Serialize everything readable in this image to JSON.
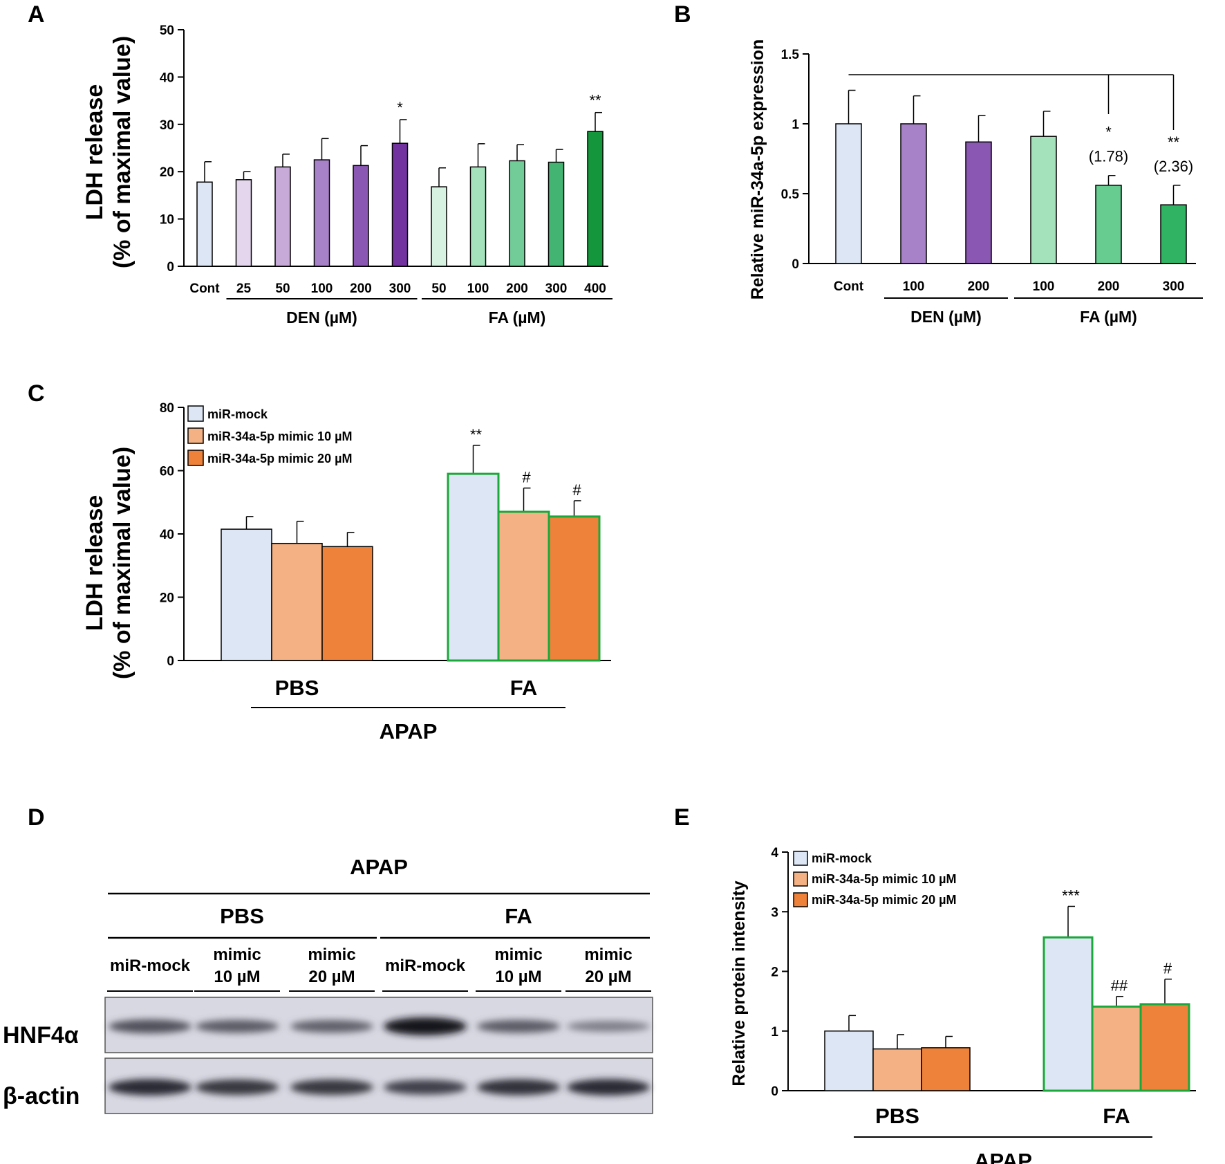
{
  "panel_letters": [
    "A",
    "B",
    "C",
    "D",
    "E"
  ],
  "colors": {
    "cont": "#dce6f4",
    "den": [
      "#e4d6ec",
      "#c8aad8",
      "#a882c8",
      "#8a58b2",
      "#7232a0"
    ],
    "fa": [
      "#d8f2e2",
      "#a4e2bc",
      "#72cc98",
      "#44b472",
      "#14963c"
    ],
    "fa_b": [
      "#a4e2bc",
      "#66cc90",
      "#30b464"
    ],
    "den_b": [
      "#a882c8",
      "#8a58b2"
    ],
    "mock": "#dce6f4",
    "mimic10": "#f4b284",
    "mimic20": "#ee823a",
    "outline_highlight": "#1aa83a",
    "outline_default": "#000000"
  },
  "chart_data": [
    {
      "panel": "A",
      "type": "bar",
      "ylabel": "LDH release",
      "ylabel2": "(% of maximal value)",
      "ylim": [
        0,
        50
      ],
      "yticks": [
        0,
        10,
        20,
        30,
        40,
        50
      ],
      "categories": [
        "Cont",
        "25",
        "50",
        "100",
        "200",
        "300",
        "50",
        "100",
        "200",
        "300",
        "400"
      ],
      "values": [
        17.8,
        18.3,
        21.0,
        22.5,
        21.3,
        26.0,
        16.8,
        21.0,
        22.3,
        22.0,
        28.5
      ],
      "errors": [
        4.3,
        1.7,
        2.7,
        4.5,
        4.2,
        5.0,
        4.0,
        4.9,
        3.4,
        2.7,
        4.0
      ],
      "annotations": [
        "",
        "",
        "",
        "",
        "",
        "*",
        "",
        "",
        "",
        "",
        "**"
      ],
      "groups": [
        {
          "label": "DEN (µM)",
          "from": 1,
          "to": 5
        },
        {
          "label": "FA (µM)",
          "from": 6,
          "to": 10
        }
      ]
    },
    {
      "panel": "B",
      "type": "bar",
      "ylabel": "Relative miR-34a-5p expression",
      "ylim": [
        0,
        1.5
      ],
      "yticks": [
        "0",
        "0.5",
        "1",
        "1.5"
      ],
      "categories": [
        "Cont",
        "100",
        "200",
        "100",
        "200",
        "300"
      ],
      "values": [
        1.0,
        1.0,
        0.87,
        0.91,
        0.56,
        0.42
      ],
      "errors": [
        0.24,
        0.2,
        0.19,
        0.18,
        0.07,
        0.14
      ],
      "annotations": [
        "",
        "",
        "",
        "",
        "*",
        "**"
      ],
      "fold_labels": [
        "",
        "",
        "",
        "",
        "(1.78)",
        "(2.36)"
      ],
      "groups": [
        {
          "label": "DEN (µM)",
          "from": 1,
          "to": 2
        },
        {
          "label": "FA (µM)",
          "from": 3,
          "to": 5
        }
      ]
    },
    {
      "panel": "C",
      "type": "bar",
      "ylabel": "LDH release",
      "ylabel2": "(% of maximal value)",
      "ylim": [
        0,
        80
      ],
      "yticks": [
        0,
        20,
        40,
        60,
        80
      ],
      "categories": [
        "PBS",
        "FA"
      ],
      "group_label": "APAP",
      "legend": [
        "miR-mock",
        "miR-34a-5p mimic 10 µM",
        "miR-34a-5p mimic 20 µM"
      ],
      "series": [
        {
          "name": "miR-mock",
          "values": [
            41.5,
            59.0
          ],
          "errors": [
            4.0,
            9.0
          ],
          "annotations": [
            "",
            "**"
          ]
        },
        {
          "name": "miR-34a-5p mimic 10 µM",
          "values": [
            37.0,
            47.0
          ],
          "errors": [
            7.0,
            7.5
          ],
          "annotations": [
            "",
            "#"
          ]
        },
        {
          "name": "miR-34a-5p mimic 20 µM",
          "values": [
            36.0,
            45.5
          ],
          "errors": [
            4.5,
            5.0
          ],
          "annotations": [
            "",
            "#"
          ]
        }
      ]
    },
    {
      "panel": "E",
      "type": "bar",
      "ylabel": "Relative protein intensity",
      "ylim": [
        0,
        4
      ],
      "yticks": [
        0,
        1,
        2,
        3,
        4
      ],
      "categories": [
        "PBS",
        "FA"
      ],
      "group_label": "APAP",
      "legend": [
        "miR-mock",
        "miR-34a-5p mimic 10 µM",
        "miR-34a-5p mimic 20 µM"
      ],
      "series": [
        {
          "name": "miR-mock",
          "values": [
            1.0,
            2.57
          ],
          "errors": [
            0.26,
            0.52
          ],
          "annotations": [
            "",
            "***"
          ]
        },
        {
          "name": "miR-34a-5p mimic 10 µM",
          "values": [
            0.7,
            1.41
          ],
          "errors": [
            0.24,
            0.17
          ],
          "annotations": [
            "",
            "##"
          ]
        },
        {
          "name": "miR-34a-5p mimic 20 µM",
          "values": [
            0.72,
            1.45
          ],
          "errors": [
            0.19,
            0.42
          ],
          "annotations": [
            "",
            "#"
          ]
        }
      ]
    }
  ],
  "blot": {
    "treatment": "APAP",
    "groups": [
      "PBS",
      "FA"
    ],
    "lane_labels": [
      [
        "miR-mock"
      ],
      [
        "mimic",
        "10 µM"
      ],
      [
        "mimic",
        "20 µM"
      ],
      [
        "miR-mock"
      ],
      [
        "mimic",
        "10 µM"
      ],
      [
        "mimic",
        "20 µM"
      ]
    ],
    "rows": [
      "HNF4α",
      "β-actin"
    ],
    "hnf4a_intensity": [
      0.62,
      0.55,
      0.52,
      1.0,
      0.55,
      0.34
    ],
    "actin_intensity": [
      0.85,
      0.78,
      0.78,
      0.72,
      0.82,
      0.85
    ]
  }
}
